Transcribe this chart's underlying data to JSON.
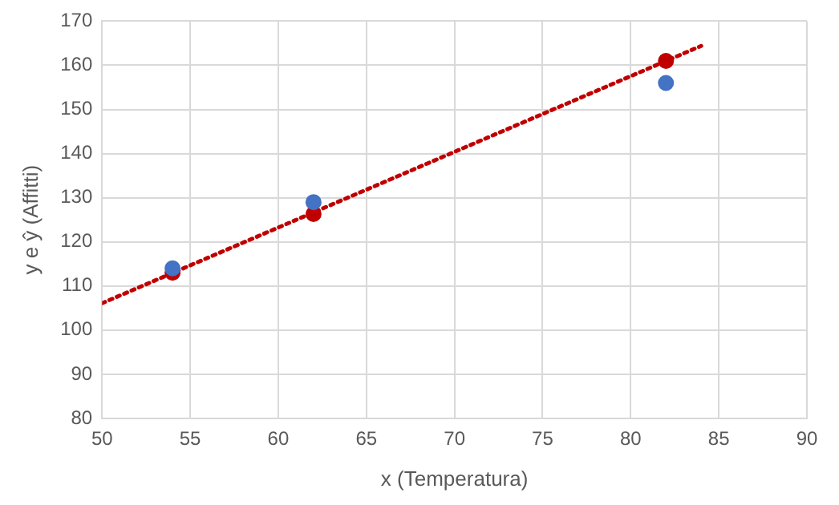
{
  "chart_data": {
    "type": "scatter",
    "xlabel": "x (Temperatura)",
    "ylabel": "y e ŷ (Affitti)",
    "xlim": [
      50,
      90
    ],
    "xticks": [
      50,
      55,
      60,
      65,
      70,
      75,
      80,
      85,
      90
    ],
    "ylim": [
      80,
      170
    ],
    "yticks": [
      80,
      90,
      100,
      110,
      120,
      130,
      140,
      150,
      160,
      170
    ],
    "grid": true,
    "legend": false,
    "marker": "circle",
    "series": [
      {
        "color": "#4472c4",
        "x": [
          54,
          62,
          82
        ],
        "values": [
          114,
          129,
          156
        ]
      },
      {
        "color": "#c00000",
        "x": [
          54,
          62,
          82
        ],
        "values": [
          113,
          126.3,
          161
        ]
      },
      {
        "type": "line",
        "line_style": "dotted",
        "marker": "none",
        "color": "#c00000",
        "x": [
          50,
          84
        ],
        "values": [
          106.1,
          164.4
        ]
      }
    ]
  }
}
